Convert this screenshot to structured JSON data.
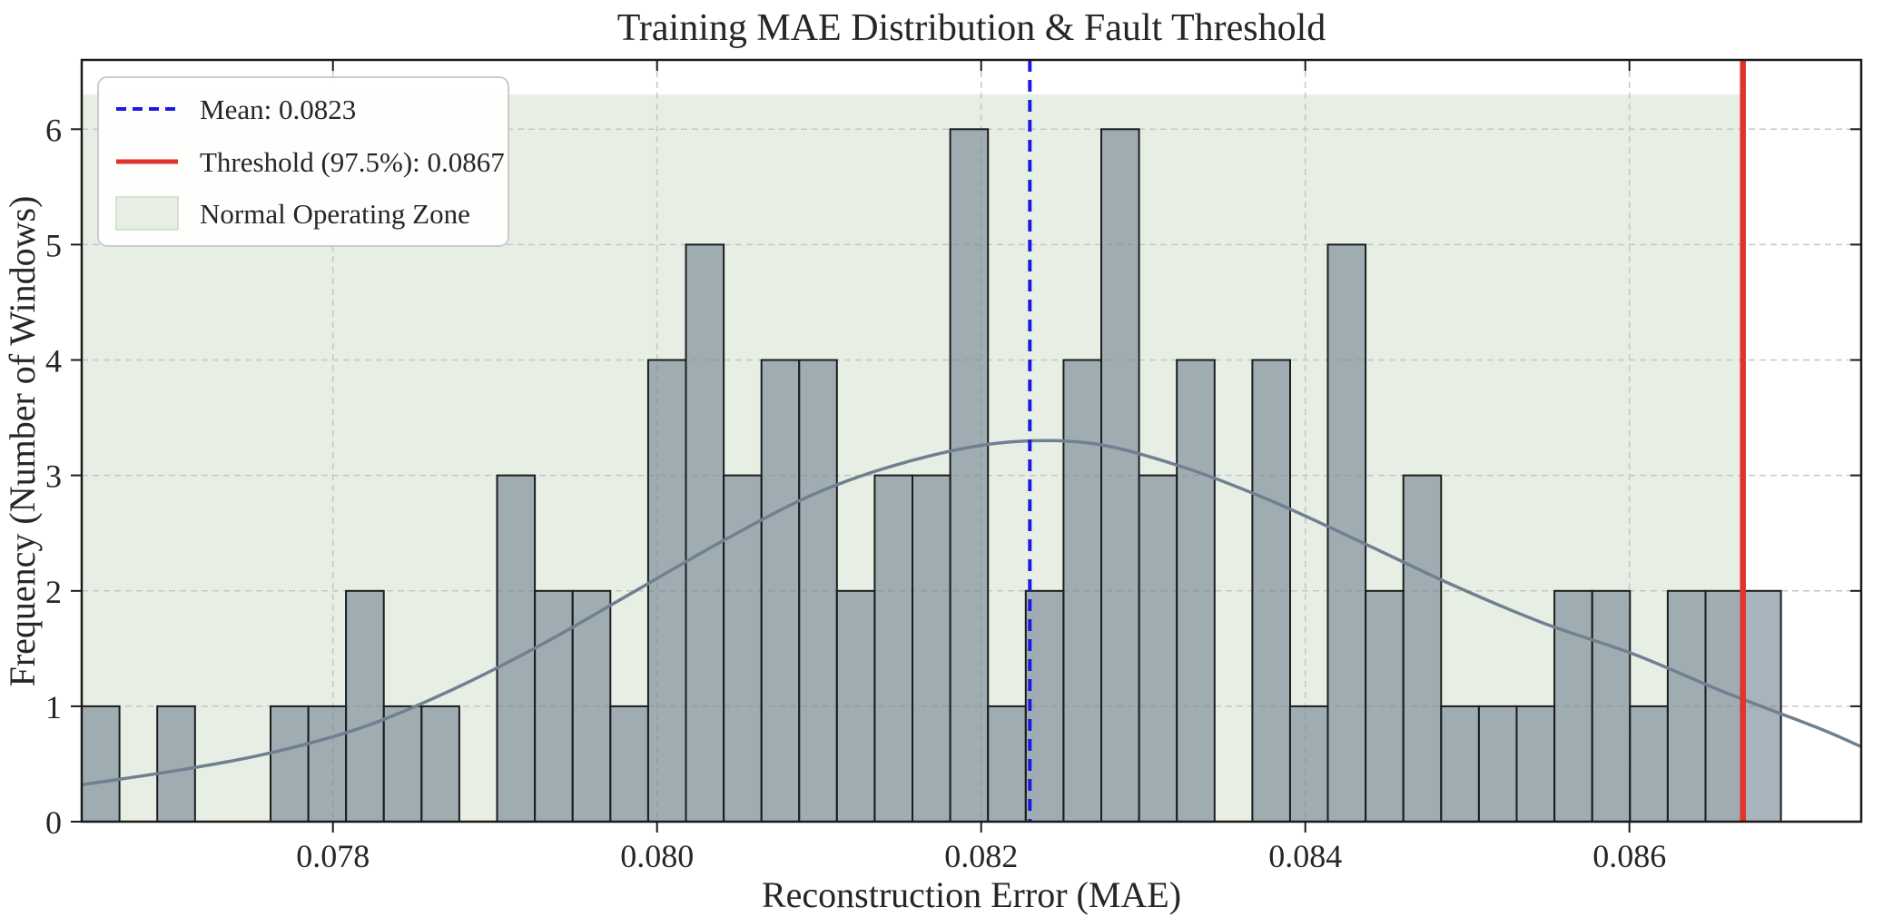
{
  "chart_data": {
    "type": "bar",
    "subtype": "histogram",
    "title": "Training MAE Distribution & Fault Threshold",
    "xlabel": "Reconstruction Error (MAE)",
    "ylabel": "Frequency (Number of Windows)",
    "xlim": [
      0.07645,
      0.08743
    ],
    "ylim": [
      0,
      6.6
    ],
    "grid": true,
    "x_ticks": [
      {
        "value": 0.078,
        "label": "0.078"
      },
      {
        "value": 0.08,
        "label": "0.080"
      },
      {
        "value": 0.082,
        "label": "0.082"
      },
      {
        "value": 0.084,
        "label": "0.084"
      },
      {
        "value": 0.086,
        "label": "0.086"
      }
    ],
    "y_ticks": [
      {
        "value": 0,
        "label": "0"
      },
      {
        "value": 1,
        "label": "1"
      },
      {
        "value": 2,
        "label": "2"
      },
      {
        "value": 3,
        "label": "3"
      },
      {
        "value": 4,
        "label": "4"
      },
      {
        "value": 5,
        "label": "5"
      },
      {
        "value": 6,
        "label": "6"
      }
    ],
    "bins": {
      "start": 0.07645,
      "width": 0.000233,
      "counts": [
        1,
        0,
        1,
        0,
        0,
        1,
        1,
        2,
        1,
        1,
        0,
        3,
        2,
        2,
        1,
        4,
        5,
        3,
        4,
        4,
        2,
        3,
        3,
        6,
        1,
        2,
        4,
        6,
        3,
        4,
        0,
        4,
        1,
        5,
        2,
        3,
        1,
        1,
        1,
        2,
        2,
        1,
        2,
        2,
        2
      ]
    },
    "bar_style": {
      "fill": "rgba(112,128,144,0.6)",
      "edge": "#1c1c1c"
    },
    "mean_line": {
      "value": 0.0823,
      "color": "#1a1ae6",
      "style": "dashed"
    },
    "threshold_line": {
      "value": 0.0867,
      "color": "#e0342b",
      "style": "solid"
    },
    "normal_zone": {
      "x_start": 0.07645,
      "x_end": 0.0867,
      "y_min": 0,
      "y_max": 6.3,
      "color": "#e7efe5",
      "border": "#cfdcc9"
    },
    "kde_curve": {
      "color": "#708090",
      "points": [
        [
          0.07645,
          0.32
        ],
        [
          0.077066,
          0.45
        ],
        [
          0.077627,
          0.6
        ],
        [
          0.078187,
          0.82
        ],
        [
          0.078747,
          1.15
        ],
        [
          0.079307,
          1.55
        ],
        [
          0.079867,
          2.0
        ],
        [
          0.080428,
          2.45
        ],
        [
          0.080988,
          2.85
        ],
        [
          0.081548,
          3.12
        ],
        [
          0.082108,
          3.28
        ],
        [
          0.082669,
          3.28
        ],
        [
          0.083229,
          3.08
        ],
        [
          0.083789,
          2.78
        ],
        [
          0.084349,
          2.42
        ],
        [
          0.084909,
          2.05
        ],
        [
          0.08547,
          1.72
        ],
        [
          0.08603,
          1.45
        ],
        [
          0.08659,
          1.12
        ],
        [
          0.08715,
          0.82
        ],
        [
          0.08743,
          0.65
        ]
      ]
    },
    "legend": {
      "position": "upper left",
      "entries": [
        {
          "label": "Mean: 0.0823",
          "type": "line-dashed",
          "color": "#1a1ae6"
        },
        {
          "label": "Threshold (97.5%): 0.0867",
          "type": "line",
          "color": "#e0342b"
        },
        {
          "label": "Normal Operating Zone",
          "type": "patch",
          "color": "#e7efe5",
          "patch_border": "#ccd8c7"
        }
      ]
    },
    "grid_style": {
      "color": "#c6c6c6",
      "dash": "7 5"
    },
    "spine_color": "#1a1a1a"
  }
}
